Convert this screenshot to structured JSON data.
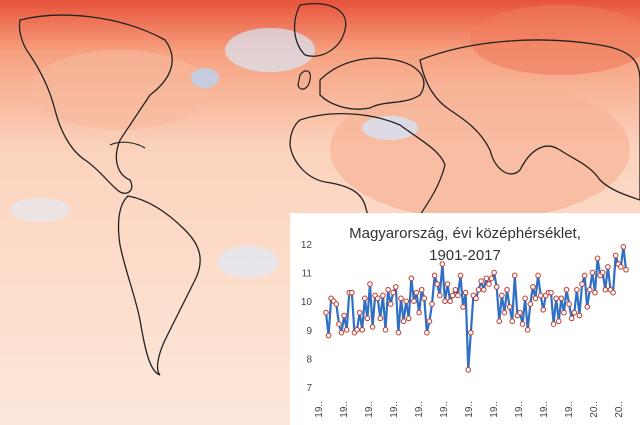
{
  "chart_data": {
    "type": "line",
    "title_line1": "Magyarország, évi középhérséklet,",
    "title_line2": "1901-2017",
    "xlabel": "",
    "ylabel": "",
    "ylim": [
      7,
      12
    ],
    "yticks": [
      "12",
      "11",
      "10",
      "9",
      "8",
      "7"
    ],
    "xtick_labels": [
      "19..",
      "19..",
      "19..",
      "19..",
      "19..",
      "19..",
      "19..",
      "19..",
      "19..",
      "19..",
      "19..",
      "20..",
      "20.."
    ],
    "series_color": "#2f6fc4",
    "marker_color": "#c0392b",
    "grid": false,
    "x_start": 1901,
    "values": [
      9.6,
      8.8,
      10.1,
      10.0,
      9.9,
      9.2,
      8.9,
      9.5,
      9.0,
      10.3,
      10.3,
      8.9,
      9.0,
      9.6,
      9.0,
      10.1,
      9.4,
      10.6,
      9.1,
      10.2,
      10.1,
      9.4,
      10.2,
      9.0,
      10.4,
      9.9,
      10.3,
      10.5,
      8.9,
      10.1,
      9.3,
      10.0,
      9.4,
      10.8,
      10.0,
      10.3,
      9.6,
      10.4,
      10.1,
      8.9,
      9.3,
      9.9,
      10.9,
      10.6,
      10.2,
      11.3,
      10.0,
      10.6,
      10.0,
      10.2,
      10.4,
      10.2,
      10.9,
      9.8,
      10.3,
      7.6,
      8.9,
      10.2,
      10.1,
      10.4,
      10.7,
      10.4,
      10.8,
      10.6,
      10.8,
      11.0,
      10.5,
      9.3,
      10.2,
      9.6,
      10.4,
      9.8,
      9.3,
      10.9,
      9.5,
      9.6,
      9.2,
      10.1,
      9.0,
      9.9,
      10.5,
      10.1,
      10.9,
      10.2,
      9.7,
      10.2,
      10.3,
      10.3,
      9.2,
      10.1,
      9.3,
      10.1,
      9.6,
      10.4,
      9.9,
      9.4,
      9.6,
      10.4,
      9.5,
      10.6,
      10.9,
      9.8,
      10.4,
      11.0,
      10.3,
      11.5,
      10.9,
      11.0,
      10.4,
      11.2,
      10.4,
      10.3,
      11.6,
      11.3,
      11.2,
      11.9,
      11.1
    ]
  }
}
